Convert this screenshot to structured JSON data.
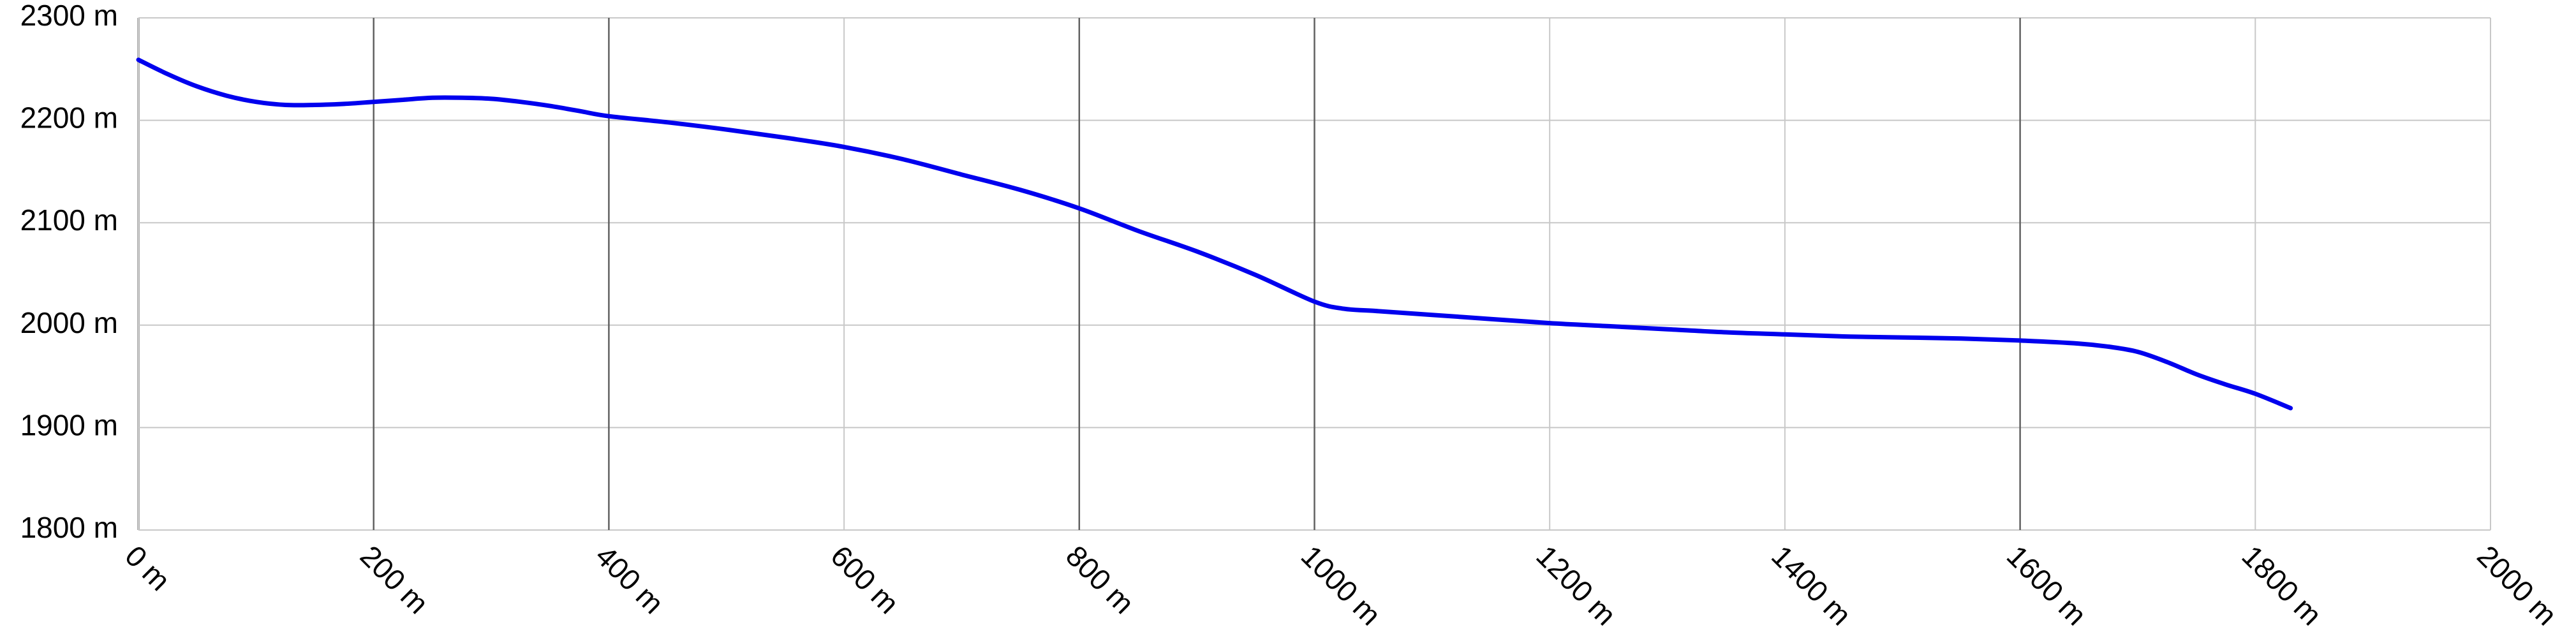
{
  "chart_data": {
    "type": "line",
    "title": "",
    "xlabel": "",
    "ylabel": "",
    "xlim": [
      0,
      2000
    ],
    "ylim": [
      1800,
      2300
    ],
    "x_ticks": [
      0,
      200,
      400,
      600,
      800,
      1000,
      1200,
      1400,
      1600,
      1800,
      2000
    ],
    "x_tick_labels": [
      "0 m",
      "200 m",
      "400 m",
      "600 m",
      "800 m",
      "1000 m",
      "1200 m",
      "1400 m",
      "1600 m",
      "1800 m",
      "2000 m"
    ],
    "y_ticks": [
      1800,
      1900,
      2000,
      2100,
      2200,
      2300
    ],
    "y_tick_labels": [
      "1800 m",
      "1900 m",
      "2000 m",
      "2100 m",
      "2200 m",
      "2300 m"
    ],
    "major_x_gridlines": [
      200,
      400,
      800,
      1000,
      1600
    ],
    "grid": true,
    "legend": "none",
    "series": [
      {
        "color": "#0000ee",
        "x": [
          0,
          25,
          50,
          75,
          100,
          125,
          150,
          175,
          200,
          225,
          250,
          275,
          300,
          325,
          350,
          375,
          400,
          450,
          500,
          550,
          600,
          650,
          700,
          750,
          800,
          850,
          900,
          950,
          1000,
          1025,
          1050,
          1100,
          1150,
          1200,
          1250,
          1300,
          1350,
          1400,
          1450,
          1500,
          1550,
          1600,
          1650,
          1675,
          1700,
          1725,
          1750,
          1775,
          1800,
          1830
        ],
        "y": [
          2259,
          2245,
          2233,
          2224,
          2218,
          2215,
          2215,
          2216,
          2218,
          2220,
          2222,
          2222,
          2221,
          2218,
          2214,
          2209,
          2204,
          2198,
          2191,
          2183,
          2174,
          2162,
          2147,
          2132,
          2114,
          2092,
          2072,
          2049,
          2023,
          2016,
          2014,
          2010,
          2006,
          2002,
          1999,
          1996,
          1993,
          1991,
          1989,
          1988,
          1987,
          1985,
          1982,
          1979,
          1974,
          1964,
          1952,
          1942,
          1933,
          1919
        ]
      }
    ]
  }
}
